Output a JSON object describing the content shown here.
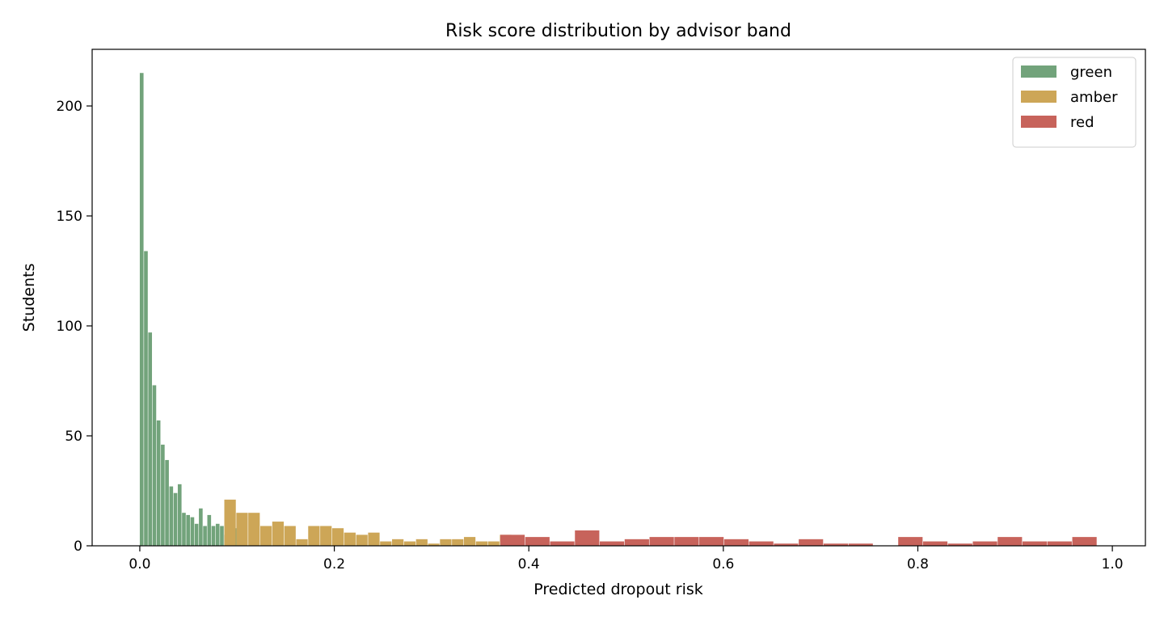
{
  "chart_data": {
    "type": "bar",
    "title": "Risk score distribution by advisor band",
    "xlabel": "Predicted dropout risk",
    "ylabel": "Students",
    "xlim": [
      -0.049,
      1.034
    ],
    "ylim": [
      0,
      225.75
    ],
    "x_ticks": [
      0.0,
      0.2,
      0.4,
      0.6,
      0.8,
      1.0
    ],
    "x_tick_labels": [
      "0.0",
      "0.2",
      "0.4",
      "0.6",
      "0.8",
      "1.0"
    ],
    "y_ticks": [
      0,
      50,
      100,
      150,
      200
    ],
    "y_tick_labels": [
      "0",
      "50",
      "100",
      "150",
      "200"
    ],
    "grid": false,
    "legend": {
      "placement": "top-right"
    },
    "series": [
      {
        "name": "green",
        "color": "#72a37b",
        "bin_start": 0.0,
        "bin_width": 0.00434,
        "values": [
          215,
          134,
          97,
          73,
          57,
          46,
          39,
          27,
          24,
          28,
          15,
          14,
          13,
          10,
          17,
          9,
          14,
          9,
          10,
          9,
          5,
          5,
          8,
          9
        ]
      },
      {
        "name": "amber",
        "color": "#cda657",
        "bin_start": 0.0869,
        "bin_width": 0.01232,
        "values": [
          21,
          15,
          15,
          9,
          11,
          9,
          3,
          9,
          9,
          8,
          6,
          5,
          6,
          2,
          3,
          2,
          3,
          1,
          3,
          3,
          4,
          2,
          2,
          5
        ]
      },
      {
        "name": "red",
        "color": "#c7635b",
        "bin_start": 0.3707,
        "bin_width": 0.02557,
        "values": [
          5,
          4,
          2,
          7,
          2,
          3,
          4,
          4,
          4,
          3,
          2,
          1,
          3,
          1,
          1,
          0,
          4,
          2,
          1,
          2,
          4,
          2,
          2,
          4
        ]
      }
    ]
  }
}
